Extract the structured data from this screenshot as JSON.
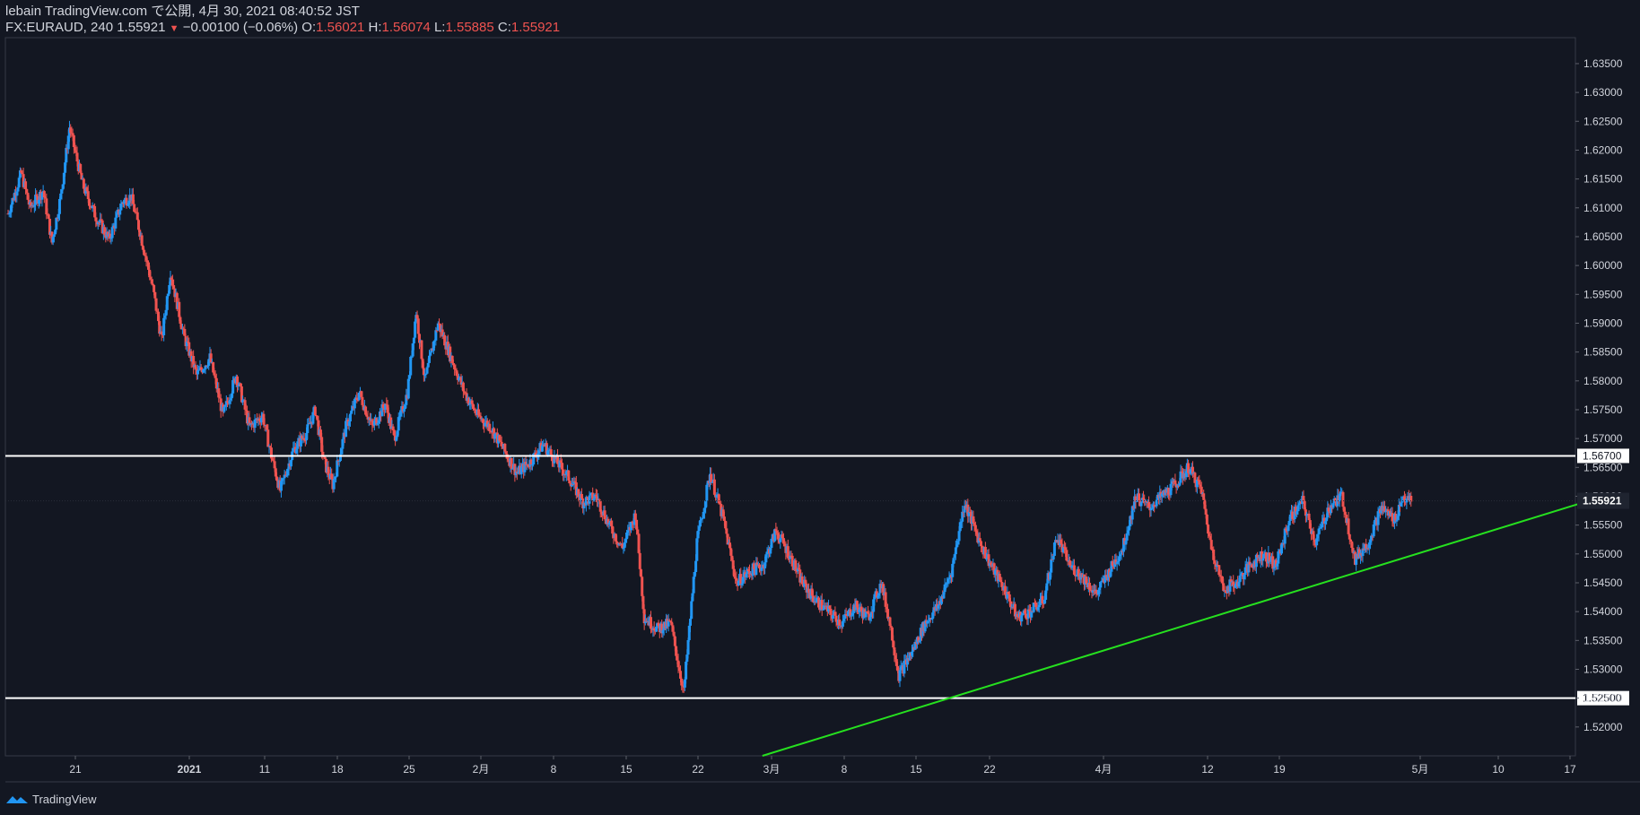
{
  "header": {
    "publish_line": "lebain TradingView.com で公開, 4月 30, 2021 08:40:52 JST",
    "symbol": "FX:EURAUD, 240",
    "last": "1.55921",
    "arrow": "▼",
    "change": "−0.00100 (−0.06%)",
    "o_label": "O:",
    "o_value": "1.56021",
    "h_label": "H:",
    "h_value": "1.56074",
    "l_label": "L:",
    "l_value": "1.55885",
    "c_label": "C:",
    "c_value": "1.55921"
  },
  "footer": {
    "brand": "TradingView"
  },
  "colors": {
    "background": "#131722",
    "up_candle": "#2196f3",
    "down_candle": "#ef5350",
    "horizontal_line": "#ffffff",
    "trend_line": "#26e01f",
    "axis_text": "#d1d4dc",
    "last_price_tag": "#1f2430"
  },
  "chart_data": {
    "type": "candlestick",
    "symbol": "FX:EURAUD",
    "timeframe": "240",
    "ylim": [
      1.515,
      1.6395
    ],
    "y_ticks": [
      "1.52000",
      "1.52500",
      "1.53000",
      "1.53500",
      "1.54000",
      "1.54500",
      "1.55000",
      "1.55500",
      "1.56000",
      "1.56500",
      "1.57000",
      "1.57500",
      "1.58000",
      "1.58500",
      "1.59000",
      "1.59500",
      "1.60000",
      "1.60500",
      "1.61000",
      "1.61500",
      "1.62000",
      "1.62500",
      "1.63000",
      "1.63500"
    ],
    "x_ticks": [
      "21",
      "2021",
      "11",
      "18",
      "25",
      "2月",
      "8",
      "15",
      "22",
      "3月",
      "8",
      "15",
      "22",
      "4月",
      "12",
      "19",
      "5月",
      "10",
      "17"
    ],
    "price_path": [
      [
        0,
        1.609
      ],
      [
        3,
        1.616
      ],
      [
        5,
        1.61
      ],
      [
        8,
        1.613
      ],
      [
        10,
        1.604
      ],
      [
        12,
        1.612
      ],
      [
        14,
        1.624
      ],
      [
        17,
        1.614
      ],
      [
        20,
        1.6085
      ],
      [
        23,
        1.6045
      ],
      [
        26,
        1.611
      ],
      [
        28,
        1.612
      ],
      [
        30,
        1.606
      ],
      [
        33,
        1.596
      ],
      [
        35,
        1.587
      ],
      [
        37,
        1.599
      ],
      [
        40,
        1.588
      ],
      [
        43,
        1.581
      ],
      [
        46,
        1.584
      ],
      [
        49,
        1.574
      ],
      [
        52,
        1.581
      ],
      [
        55,
        1.572
      ],
      [
        58,
        1.574
      ],
      [
        60,
        1.567
      ],
      [
        62,
        1.561
      ],
      [
        65,
        1.568
      ],
      [
        68,
        1.571
      ],
      [
        70,
        1.575
      ],
      [
        72,
        1.566
      ],
      [
        74,
        1.562
      ],
      [
        77,
        1.572
      ],
      [
        80,
        1.578
      ],
      [
        83,
        1.572
      ],
      [
        86,
        1.576
      ],
      [
        88,
        1.57
      ],
      [
        91,
        1.578
      ],
      [
        93,
        1.592
      ],
      [
        95,
        1.58
      ],
      [
        98,
        1.59
      ],
      [
        101,
        1.584
      ],
      [
        104,
        1.578
      ],
      [
        107,
        1.574
      ],
      [
        110,
        1.572
      ],
      [
        113,
        1.568
      ],
      [
        116,
        1.564
      ],
      [
        119,
        1.566
      ],
      [
        122,
        1.569
      ],
      [
        125,
        1.566
      ],
      [
        128,
        1.563
      ],
      [
        131,
        1.559
      ],
      [
        134,
        1.56
      ],
      [
        137,
        1.555
      ],
      [
        140,
        1.551
      ],
      [
        143,
        1.557
      ],
      [
        145,
        1.539
      ],
      [
        148,
        1.537
      ],
      [
        151,
        1.538
      ],
      [
        154,
        1.526
      ],
      [
        157,
        1.552
      ],
      [
        160,
        1.564
      ],
      [
        163,
        1.556
      ],
      [
        166,
        1.545
      ],
      [
        169,
        1.547
      ],
      [
        172,
        1.548
      ],
      [
        175,
        1.554
      ],
      [
        178,
        1.55
      ],
      [
        181,
        1.545
      ],
      [
        184,
        1.542
      ],
      [
        187,
        1.54
      ],
      [
        190,
        1.538
      ],
      [
        193,
        1.541
      ],
      [
        196,
        1.539
      ],
      [
        199,
        1.545
      ],
      [
        201,
        1.538
      ],
      [
        203,
        1.529
      ],
      [
        206,
        1.533
      ],
      [
        209,
        1.538
      ],
      [
        212,
        1.541
      ],
      [
        215,
        1.547
      ],
      [
        218,
        1.559
      ],
      [
        221,
        1.553
      ],
      [
        224,
        1.548
      ],
      [
        227,
        1.544
      ],
      [
        230,
        1.539
      ],
      [
        233,
        1.54
      ],
      [
        236,
        1.542
      ],
      [
        239,
        1.553
      ],
      [
        242,
        1.548
      ],
      [
        245,
        1.546
      ],
      [
        248,
        1.543
      ],
      [
        251,
        1.547
      ],
      [
        254,
        1.551
      ],
      [
        257,
        1.56
      ],
      [
        260,
        1.558
      ],
      [
        263,
        1.56
      ],
      [
        266,
        1.562
      ],
      [
        269,
        1.565
      ],
      [
        272,
        1.561
      ],
      [
        274,
        1.552
      ],
      [
        277,
        1.544
      ],
      [
        280,
        1.545
      ],
      [
        283,
        1.548
      ],
      [
        286,
        1.55
      ],
      [
        289,
        1.548
      ],
      [
        292,
        1.556
      ],
      [
        295,
        1.559
      ],
      [
        298,
        1.552
      ],
      [
        301,
        1.558
      ],
      [
        304,
        1.56
      ],
      [
        307,
        1.549
      ],
      [
        310,
        1.552
      ],
      [
        313,
        1.558
      ],
      [
        316,
        1.556
      ],
      [
        318,
        1.56
      ],
      [
        319,
        1.5592
      ]
    ],
    "horizontal_levels": [
      1.567,
      1.525
    ],
    "horizontal_level_labels": [
      "1.56700",
      "1.52500"
    ],
    "last_price": 1.55921,
    "last_price_label": "1.55921",
    "trend_line": {
      "from_date": "2021-02-26",
      "from_price": 1.515,
      "to_date": "2021-05-18",
      "to_price": 1.55944
    }
  }
}
